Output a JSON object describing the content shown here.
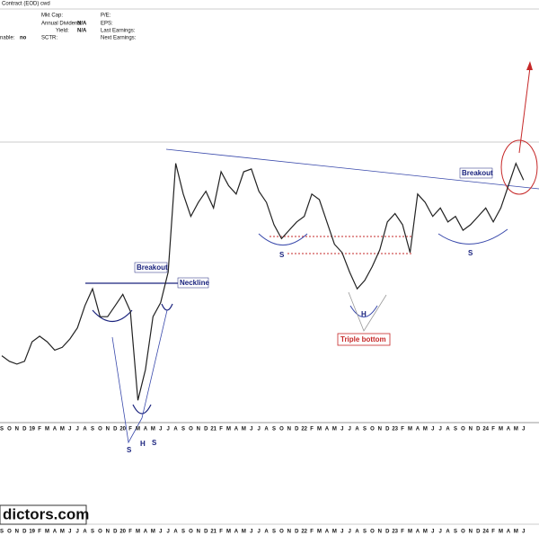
{
  "header": {
    "title": "Contract (EOD) cwd",
    "left_cut": "nable:",
    "left_cut_value": "no",
    "fields": [
      {
        "label": "Mkt Cap:",
        "value": ""
      },
      {
        "label": "Annual Dividend:",
        "value": "N/A"
      },
      {
        "label": "Yield:",
        "value": "N/A"
      },
      {
        "label": "SCTR:",
        "value": ""
      }
    ],
    "fields2": [
      "P/E:",
      "EPS:",
      "Last Earnings:",
      "Next Earnings:"
    ]
  },
  "watermark": "dictors.com",
  "chart_data": {
    "type": "line",
    "color": "#222222",
    "categories": [
      "S",
      "O",
      "N",
      "D",
      "19",
      "F",
      "M",
      "A",
      "M",
      "J",
      "J",
      "A",
      "S",
      "O",
      "N",
      "D",
      "20",
      "F",
      "M",
      "A",
      "M",
      "J",
      "J",
      "A",
      "S",
      "O",
      "N",
      "D",
      "21",
      "F",
      "M",
      "A",
      "M",
      "J",
      "J",
      "A",
      "S",
      "O",
      "N",
      "D",
      "22",
      "F",
      "M",
      "A",
      "M",
      "J",
      "J",
      "A",
      "S",
      "O",
      "N",
      "D",
      "23",
      "F",
      "M",
      "A",
      "M",
      "J",
      "J",
      "A",
      "S",
      "O",
      "N",
      "D",
      "24",
      "F",
      "M",
      "A",
      "M",
      "J"
    ],
    "values": [
      24,
      22,
      21,
      22,
      29,
      31,
      29,
      26,
      27,
      30,
      34,
      42,
      48,
      38,
      38,
      42,
      46,
      40,
      8,
      19,
      38,
      43,
      54,
      93,
      82,
      74,
      79,
      83,
      77,
      90,
      85,
      82,
      90,
      91,
      83,
      79,
      71,
      66,
      69,
      72,
      74,
      82,
      80,
      72,
      64,
      61,
      54,
      48,
      51,
      56,
      62,
      72,
      75,
      71,
      61,
      82,
      79,
      74,
      77,
      72,
      74,
      69,
      71,
      74,
      77,
      72,
      77,
      85,
      93,
      87
    ],
    "ylim": [
      0,
      100
    ],
    "annotations": [
      "Breakout",
      "Neckline",
      "S",
      "H",
      "S",
      "S",
      "S",
      "H",
      "Triple bottom",
      "Breakout"
    ]
  }
}
